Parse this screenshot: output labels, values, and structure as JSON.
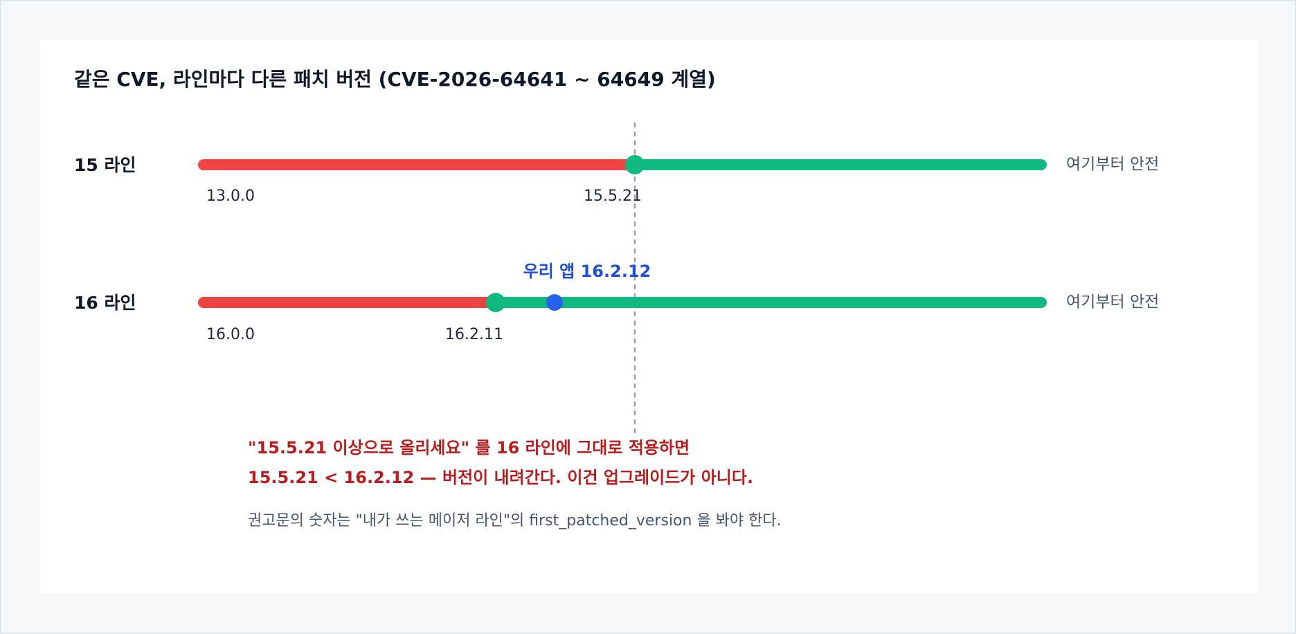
{
  "title": "같은 CVE, 라인마다 다른 패치 버전 (CVE-2026-64641 ~ 64649 계열)",
  "rows": [
    {
      "label": "15 라인",
      "start": "13.0.0",
      "patched": "15.5.21",
      "safe": "여기부터 안전"
    },
    {
      "label": "16 라인",
      "start": "16.0.0",
      "patched": "16.2.11",
      "safe": "여기부터 안전"
    }
  ],
  "app_marker": "우리 앱 16.2.12",
  "notes": [
    "\"15.5.21 이상으로 올리세요\" 를 16 라인에 그대로 적용하면",
    "15.5.21 < 16.2.12 — 버전이 내려간다. 이건 업그레이드가 아니다.",
    "권고문의 숫자는 \"내가 쓰는 메이저 라인\"의 first_patched_version 을 봐야 한다."
  ]
}
